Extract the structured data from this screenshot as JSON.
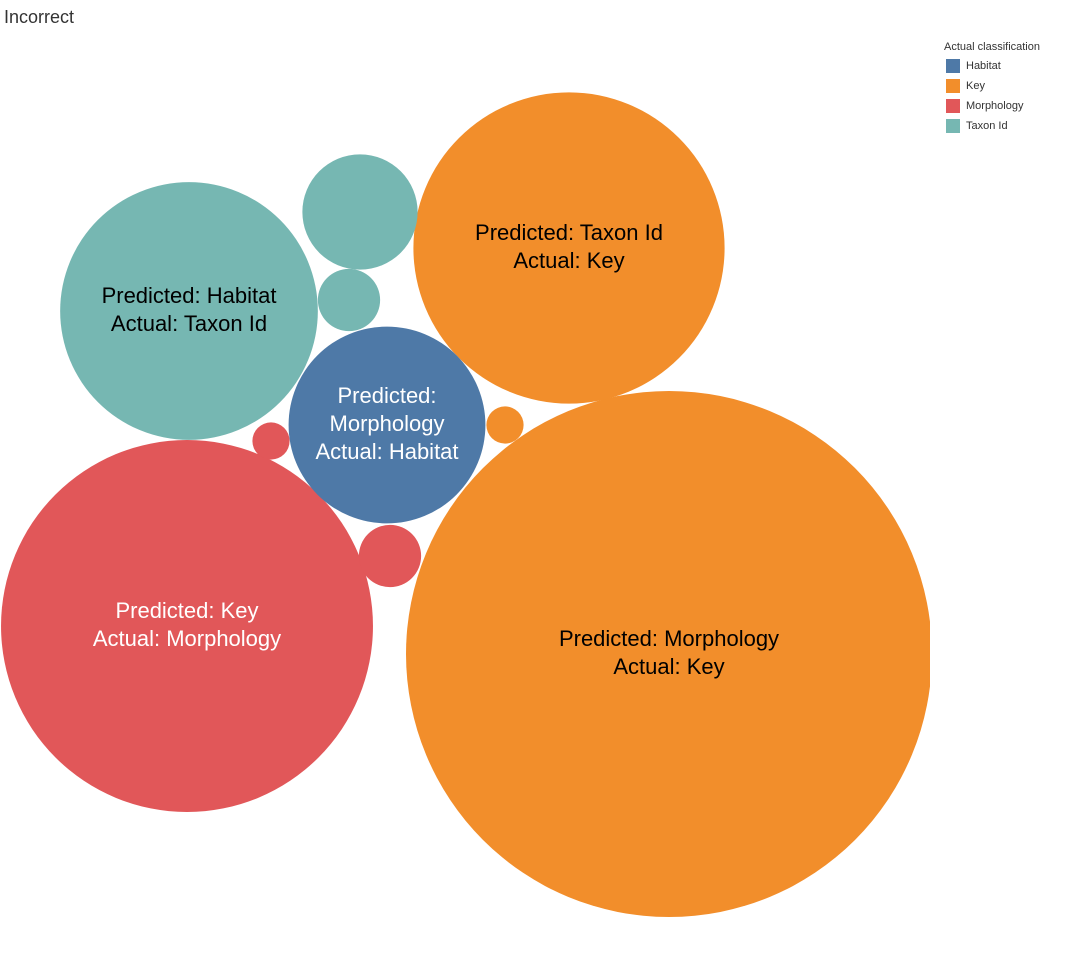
{
  "chart_data": {
    "type": "bubble",
    "title": "Incorrect",
    "legend": {
      "title": "Actual classification",
      "placement": "top-right",
      "entries": [
        {
          "name": "Habitat",
          "color": "#4e79a7"
        },
        {
          "name": "Key",
          "color": "#f28e2b"
        },
        {
          "name": "Morphology",
          "color": "#e15759"
        },
        {
          "name": "Taxon Id",
          "color": "#76b7b2"
        }
      ]
    },
    "bubbles": [
      {
        "predicted": "Morphology",
        "actual": "Key",
        "value": 100,
        "label": [
          "Predicted: Morphology",
          "Actual: Key"
        ],
        "label_color": "#000000"
      },
      {
        "predicted": "Key",
        "actual": "Morphology",
        "value": 50,
        "label": [
          "Predicted: Key",
          "Actual: Morphology"
        ],
        "label_color": "#ffffff"
      },
      {
        "predicted": "Taxon Id",
        "actual": "Key",
        "value": 35,
        "label": [
          "Predicted: Taxon Id",
          "Actual: Key"
        ],
        "label_color": "#000000"
      },
      {
        "predicted": "Habitat",
        "actual": "Taxon Id",
        "value": 24,
        "label": [
          "Predicted: Habitat",
          "Actual: Taxon Id"
        ],
        "label_color": "#000000"
      },
      {
        "predicted": "Morphology",
        "actual": "Habitat",
        "value": 14,
        "label": [
          "Predicted:",
          "Morphology",
          "Actual: Habitat"
        ],
        "label_color": "#ffffff"
      },
      {
        "predicted": "",
        "actual": "Taxon Id",
        "value": 4.8,
        "label": [],
        "label_color": "#000000"
      },
      {
        "predicted": "",
        "actual": "Taxon Id",
        "value": 1.4,
        "label": [],
        "label_color": "#000000"
      },
      {
        "predicted": "",
        "actual": "Morphology",
        "value": 1.4,
        "label": [],
        "label_color": "#000000"
      },
      {
        "predicted": "",
        "actual": "Morphology",
        "value": 0.5,
        "label": [],
        "label_color": "#000000"
      },
      {
        "predicted": "",
        "actual": "Key",
        "value": 0.5,
        "label": [],
        "label_color": "#000000"
      }
    ]
  }
}
